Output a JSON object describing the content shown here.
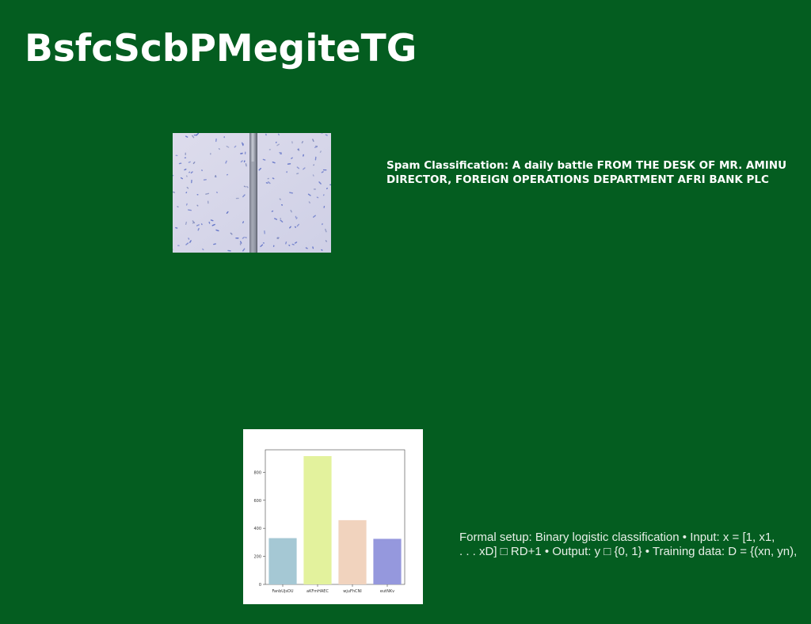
{
  "slide": {
    "title": "BsfcScbPMegiteTG",
    "caption_top": "Spam Classification: A daily battle FROM THE DESK OF MR. AMINU DIRECTOR, FOREIGN OPERATIONS DEPARTMENT AFRI BANK PLC",
    "caption_bottom": "Formal setup: Binary logistic classification • Input: x = [1, x1,\n. . . xD] □ RD+1 • Output: y □ {0, 1} • Training data: D = {(xn, yn),",
    "colors": {
      "background": "#045d20",
      "title": "#ffffff"
    }
  },
  "photo": {
    "alt": "microscope-slide-photo"
  },
  "chart_data": {
    "type": "bar",
    "categories": [
      "FanbUjsOU",
      "aKFmHAEC",
      "wjuFhCNI",
      "eutNKv"
    ],
    "values": [
      330,
      915,
      458,
      325
    ],
    "title": "",
    "xlabel": "",
    "ylabel": "",
    "ylim": [
      0,
      960
    ],
    "yticks": [
      0,
      200,
      400,
      600,
      800
    ],
    "colors": [
      "#a5c8d4",
      "#e3f29d",
      "#f1d3be",
      "#9598dd"
    ],
    "grid": false
  }
}
